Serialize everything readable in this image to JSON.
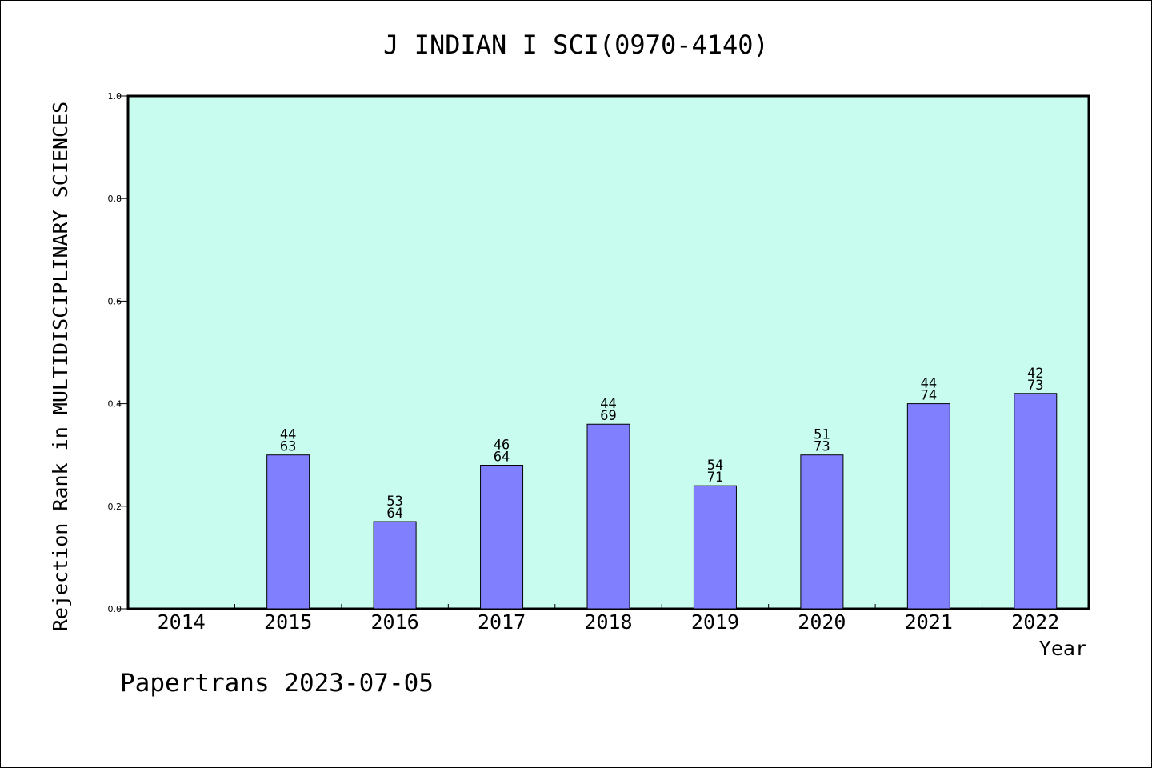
{
  "chart_data": {
    "type": "bar",
    "title": "J INDIAN I SCI(0970-4140)",
    "xlabel": "Year",
    "ylabel": "Rejection Rank in MULTIDISCIPLINARY SCIENCES",
    "categories": [
      "2014",
      "2015",
      "2016",
      "2017",
      "2018",
      "2019",
      "2020",
      "2021",
      "2022"
    ],
    "values": [
      null,
      0.3,
      0.17,
      0.28,
      0.36,
      0.24,
      0.3,
      0.4,
      0.42
    ],
    "labels_top": [
      "",
      "44",
      "53",
      "46",
      "44",
      "54",
      "51",
      "44",
      "42"
    ],
    "labels_bottom": [
      "",
      "63",
      "64",
      "64",
      "69",
      "71",
      "73",
      "74",
      "73"
    ],
    "ylim": [
      0,
      1.0
    ],
    "yticks": [
      "0.0",
      "0.2",
      "0.4",
      "0.6",
      "0.8",
      "1.0"
    ],
    "grid": false,
    "legend": "none",
    "colors": {
      "plot_background": "#c8fcee",
      "bar_fill": "#8080ff",
      "bar_stroke": "#000000",
      "axis": "#000000"
    }
  },
  "footer": {
    "text": "Papertrans 2023-07-05"
  }
}
